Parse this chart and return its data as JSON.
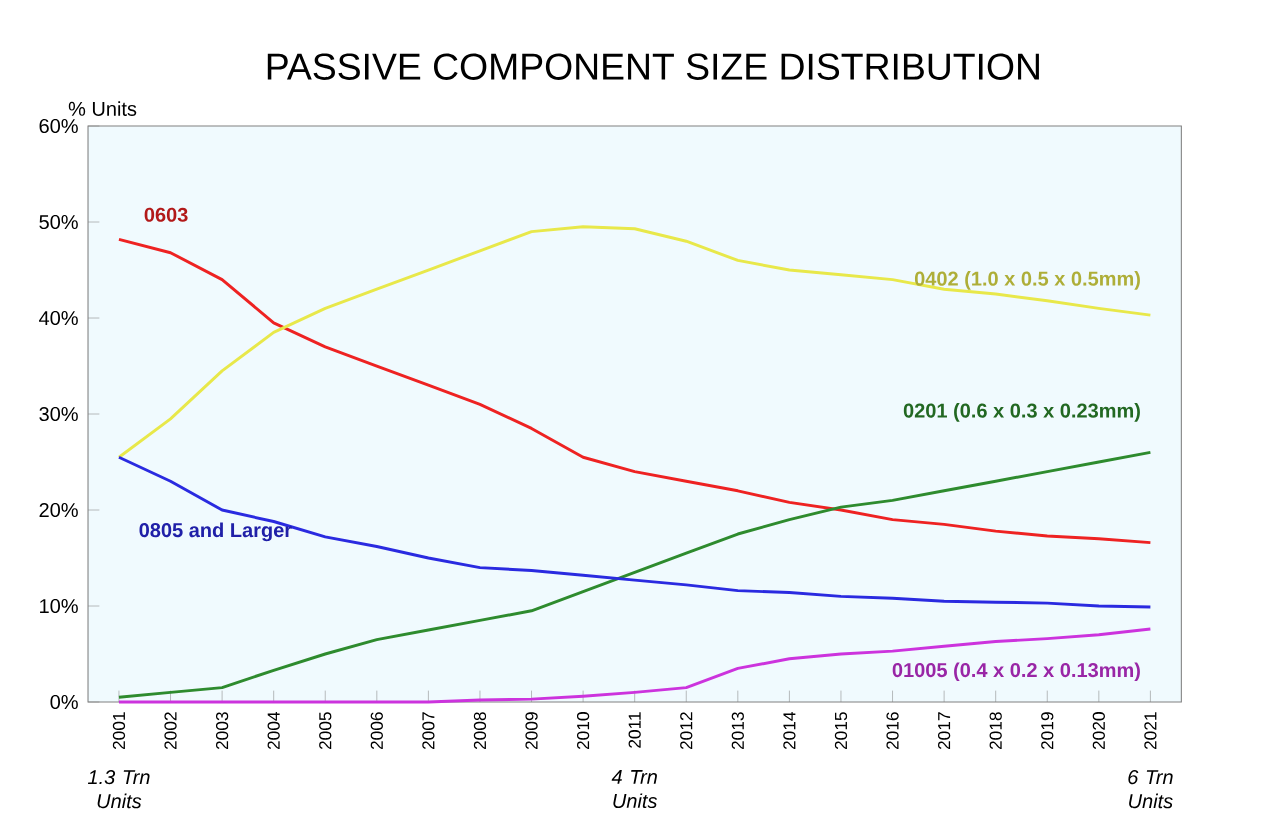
{
  "chart_data": {
    "type": "line",
    "title": "PASSIVE COMPONENT SIZE DISTRIBUTION",
    "ylabel": "% Units",
    "categories": [
      "2001",
      "2002",
      "2003",
      "2004",
      "2005",
      "2006",
      "2007",
      "2008",
      "2009",
      "2010",
      "2011",
      "2012",
      "2013",
      "2014",
      "2015",
      "2016",
      "2017",
      "2018",
      "2019",
      "2020",
      "2021"
    ],
    "series": [
      {
        "name": "0603",
        "color": "#ee2222",
        "values": [
          48.2,
          46.8,
          44,
          39.5,
          37,
          35,
          33,
          31,
          28.5,
          25.5,
          24,
          23,
          22,
          20.8,
          20,
          19,
          18.5,
          17.8,
          17.3,
          17,
          16.6
        ]
      },
      {
        "name": "0402 (1.0 x 0.5 x 0.5mm)",
        "color": "#e8e84a",
        "values": [
          25.5,
          29.5,
          34.5,
          38.5,
          41,
          43,
          45,
          47,
          49,
          49.5,
          49.3,
          48,
          46,
          45,
          44.5,
          44,
          43,
          42.5,
          41.8,
          41,
          40.3
        ]
      },
      {
        "name": "0201 (0.6 x 0.3 x 0.23mm)",
        "color": "#2e8b2e",
        "values": [
          0.5,
          1,
          1.5,
          3.3,
          5,
          6.5,
          7.5,
          8.5,
          9.5,
          11.5,
          13.5,
          15.5,
          17.5,
          19,
          20.3,
          21,
          22,
          23,
          24,
          25,
          26
        ]
      },
      {
        "name": "0805 and Larger",
        "color": "#2a2ae0",
        "values": [
          25.5,
          23,
          20,
          18.8,
          17.2,
          16.2,
          15,
          14,
          13.7,
          13.2,
          12.7,
          12.2,
          11.6,
          11.4,
          11,
          10.8,
          10.5,
          10.4,
          10.3,
          10,
          9.9
        ]
      },
      {
        "name": "01005 (0.4 x 0.2 x 0.13mm)",
        "color": "#cc33dd",
        "values": [
          0,
          0,
          0,
          0,
          0,
          0,
          0,
          0.2,
          0.3,
          0.6,
          1,
          1.5,
          3.5,
          4.5,
          5,
          5.3,
          5.8,
          6.3,
          6.6,
          7,
          7.6
        ]
      }
    ],
    "ylim": [
      0,
      60
    ],
    "yticks": [
      {
        "value": 0,
        "label": "0%"
      },
      {
        "value": 10,
        "label": "10%"
      },
      {
        "value": 20,
        "label": "20%"
      },
      {
        "value": 30,
        "label": "30%"
      },
      {
        "value": 40,
        "label": "40%"
      },
      {
        "value": 50,
        "label": "50%"
      },
      {
        "value": 60,
        "label": "60%"
      }
    ],
    "grid": false,
    "marker": "none",
    "line_style": "solid",
    "annotations": [
      "1.3 Trn Units",
      "4 Trn Units",
      "6 Trn Units"
    ]
  }
}
